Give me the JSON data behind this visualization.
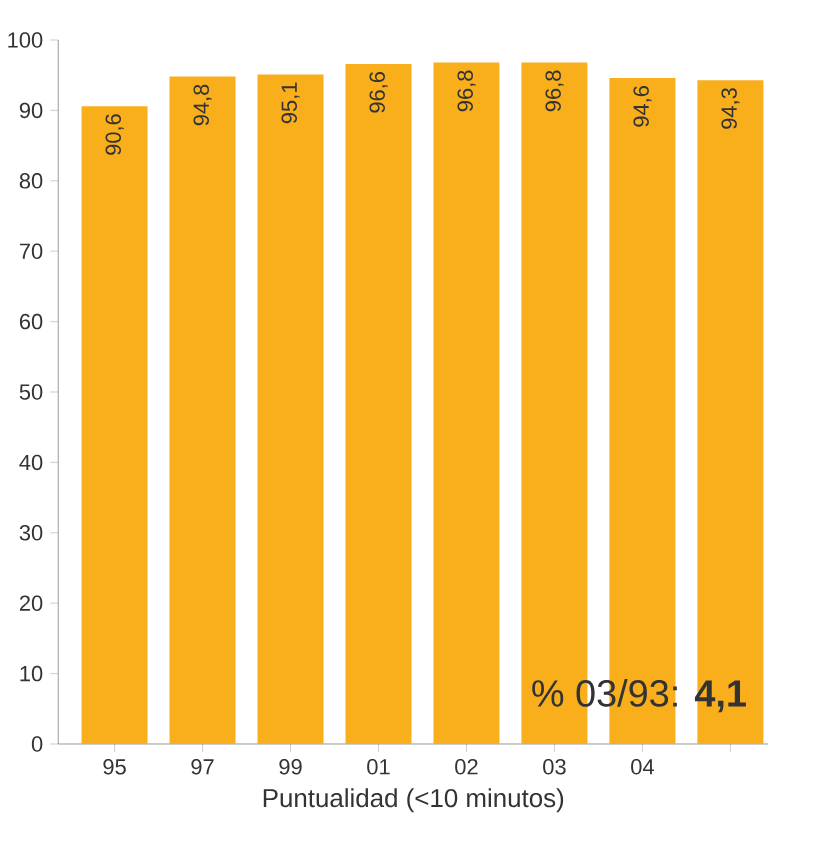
{
  "chart_data": {
    "type": "bar",
    "xlabel": "Puntualidad (<10 minutos)",
    "categories": [
      "95",
      "97",
      "99",
      "01",
      "02",
      "03",
      "04",
      null
    ],
    "values": [
      90.6,
      94.8,
      95.1,
      96.6,
      96.8,
      96.8,
      94.6,
      94.3
    ],
    "value_labels": [
      "90,6",
      "94,8",
      "95,1",
      "96,6",
      "96,8",
      "96,8",
      "94,6",
      "94,3"
    ],
    "color": "#f9ae1b",
    "ylim": [
      0,
      100
    ],
    "yticks": [
      0,
      10,
      20,
      30,
      40,
      50,
      60,
      70,
      80,
      90,
      100
    ],
    "annotations": [
      "% 03/93: **4,1**"
    ],
    "grid": false
  }
}
